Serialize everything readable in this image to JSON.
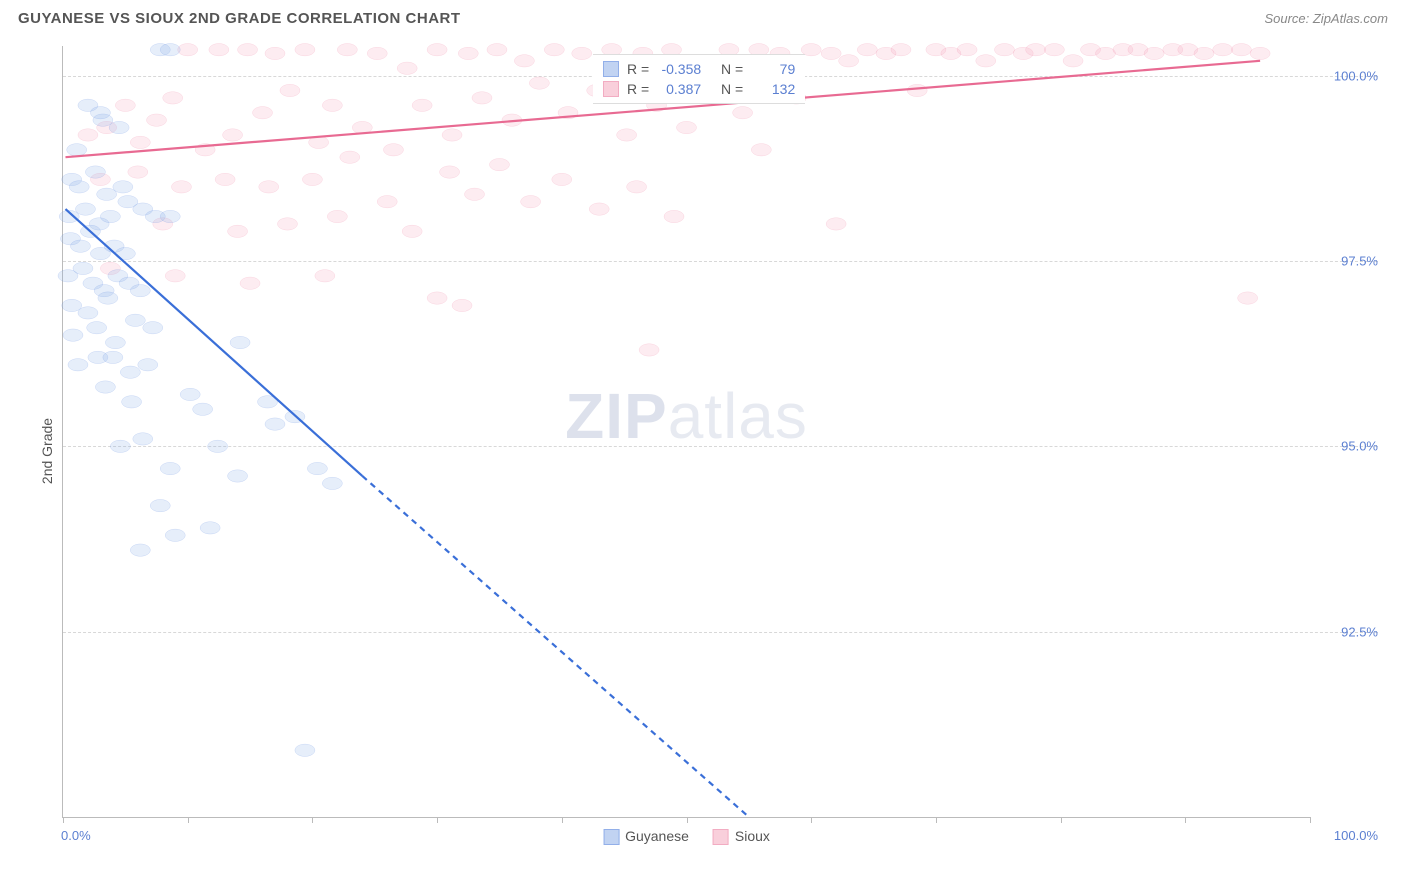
{
  "header": {
    "title": "GUYANESE VS SIOUX 2ND GRADE CORRELATION CHART",
    "source_prefix": "Source: ",
    "source_name": "ZipAtlas.com"
  },
  "watermark": {
    "bold": "ZIP",
    "rest": "atlas"
  },
  "chart": {
    "type": "scatter",
    "ylabel": "2nd Grade",
    "xlim": [
      0,
      100
    ],
    "ylim": [
      90.0,
      100.4
    ],
    "x_axis_label_left": "0.0%",
    "x_axis_label_right": "100.0%",
    "xtick_positions": [
      0,
      10,
      20,
      30,
      40,
      50,
      60,
      70,
      80,
      90,
      100
    ],
    "y_gridlines": [
      92.5,
      95.0,
      97.5,
      100.0
    ],
    "y_tick_labels": [
      "92.5%",
      "95.0%",
      "97.5%",
      "100.0%"
    ],
    "background_color": "#ffffff",
    "grid_color": "#d8d8d8",
    "axis_color": "#bbbbbb",
    "tick_label_color": "#5b7fd1",
    "marker_radius": 10,
    "marker_stroke_width": 1.5,
    "marker_fill_opacity": 0.22,
    "trend_line_width": 2.2,
    "trend_dash": "6,5",
    "series": {
      "guyanese": {
        "label": "Guyanese",
        "color_stroke": "#3a6fd8",
        "color_fill": "#8fb0e8",
        "R": "-0.358",
        "N": "79",
        "trend_solid": [
          [
            0.2,
            98.2
          ],
          [
            24.0,
            94.6
          ]
        ],
        "trend_dash": [
          [
            24.0,
            94.6
          ],
          [
            55.0,
            90.0
          ]
        ],
        "points": [
          [
            7.8,
            100.35
          ],
          [
            8.6,
            100.35
          ],
          [
            2.0,
            99.6
          ],
          [
            3.2,
            99.4
          ],
          [
            1.1,
            99.0
          ],
          [
            3.0,
            99.5
          ],
          [
            4.5,
            99.3
          ],
          [
            0.7,
            98.6
          ],
          [
            1.3,
            98.5
          ],
          [
            2.6,
            98.7
          ],
          [
            3.5,
            98.4
          ],
          [
            4.8,
            98.5
          ],
          [
            0.5,
            98.1
          ],
          [
            1.8,
            98.2
          ],
          [
            2.9,
            98.0
          ],
          [
            3.8,
            98.1
          ],
          [
            5.2,
            98.3
          ],
          [
            6.4,
            98.2
          ],
          [
            7.4,
            98.1
          ],
          [
            8.6,
            98.1
          ],
          [
            0.6,
            97.8
          ],
          [
            1.4,
            97.7
          ],
          [
            2.2,
            97.9
          ],
          [
            3.0,
            97.6
          ],
          [
            4.1,
            97.7
          ],
          [
            5.0,
            97.6
          ],
          [
            0.4,
            97.3
          ],
          [
            1.6,
            97.4
          ],
          [
            2.4,
            97.2
          ],
          [
            3.3,
            97.1
          ],
          [
            4.4,
            97.3
          ],
          [
            5.3,
            97.2
          ],
          [
            6.2,
            97.1
          ],
          [
            0.7,
            96.9
          ],
          [
            2.0,
            96.8
          ],
          [
            3.6,
            97.0
          ],
          [
            0.8,
            96.5
          ],
          [
            2.7,
            96.6
          ],
          [
            4.2,
            96.4
          ],
          [
            5.8,
            96.7
          ],
          [
            7.2,
            96.6
          ],
          [
            1.2,
            96.1
          ],
          [
            2.8,
            96.2
          ],
          [
            4.0,
            96.2
          ],
          [
            5.4,
            96.0
          ],
          [
            6.8,
            96.1
          ],
          [
            14.2,
            96.4
          ],
          [
            3.4,
            95.8
          ],
          [
            5.5,
            95.6
          ],
          [
            10.2,
            95.7
          ],
          [
            11.2,
            95.5
          ],
          [
            16.4,
            95.6
          ],
          [
            17.0,
            95.3
          ],
          [
            18.6,
            95.4
          ],
          [
            4.6,
            95.0
          ],
          [
            6.4,
            95.1
          ],
          [
            12.4,
            95.0
          ],
          [
            8.6,
            94.7
          ],
          [
            14.0,
            94.6
          ],
          [
            20.4,
            94.7
          ],
          [
            21.6,
            94.5
          ],
          [
            7.8,
            94.2
          ],
          [
            9.0,
            93.8
          ],
          [
            11.8,
            93.9
          ],
          [
            6.2,
            93.6
          ],
          [
            19.4,
            90.9
          ]
        ]
      },
      "sioux": {
        "label": "Sioux",
        "color_stroke": "#e86a92",
        "color_fill": "#f5a8be",
        "R": "0.387",
        "N": "132",
        "trend_solid": [
          [
            0.2,
            98.9
          ],
          [
            96.0,
            100.2
          ]
        ],
        "trend_dash": [],
        "points": [
          [
            2.0,
            99.2
          ],
          [
            3.5,
            99.3
          ],
          [
            5.0,
            99.6
          ],
          [
            6.2,
            99.1
          ],
          [
            7.5,
            99.4
          ],
          [
            8.8,
            99.7
          ],
          [
            10.0,
            100.35
          ],
          [
            11.4,
            99.0
          ],
          [
            12.5,
            100.35
          ],
          [
            13.6,
            99.2
          ],
          [
            14.8,
            100.35
          ],
          [
            16.0,
            99.5
          ],
          [
            17.0,
            100.3
          ],
          [
            18.2,
            99.8
          ],
          [
            19.4,
            100.35
          ],
          [
            20.5,
            99.1
          ],
          [
            21.6,
            99.6
          ],
          [
            22.8,
            100.35
          ],
          [
            24.0,
            99.3
          ],
          [
            25.2,
            100.3
          ],
          [
            26.5,
            99.0
          ],
          [
            27.6,
            100.1
          ],
          [
            28.8,
            99.6
          ],
          [
            30.0,
            100.35
          ],
          [
            31.2,
            99.2
          ],
          [
            32.5,
            100.3
          ],
          [
            33.6,
            99.7
          ],
          [
            34.8,
            100.35
          ],
          [
            36.0,
            99.4
          ],
          [
            37.0,
            100.2
          ],
          [
            38.2,
            99.9
          ],
          [
            39.4,
            100.35
          ],
          [
            40.5,
            99.5
          ],
          [
            41.6,
            100.3
          ],
          [
            42.8,
            99.8
          ],
          [
            44.0,
            100.35
          ],
          [
            45.2,
            99.2
          ],
          [
            46.5,
            100.3
          ],
          [
            47.6,
            99.6
          ],
          [
            48.8,
            100.35
          ],
          [
            50.0,
            99.3
          ],
          [
            51.0,
            100.2
          ],
          [
            52.2,
            99.9
          ],
          [
            53.4,
            100.35
          ],
          [
            54.5,
            99.5
          ],
          [
            55.8,
            100.35
          ],
          [
            57.5,
            100.3
          ],
          [
            58.8,
            99.7
          ],
          [
            60.0,
            100.35
          ],
          [
            61.6,
            100.3
          ],
          [
            63.0,
            100.2
          ],
          [
            64.5,
            100.35
          ],
          [
            66.0,
            100.3
          ],
          [
            67.2,
            100.35
          ],
          [
            68.5,
            99.8
          ],
          [
            70.0,
            100.35
          ],
          [
            71.2,
            100.3
          ],
          [
            72.5,
            100.35
          ],
          [
            74.0,
            100.2
          ],
          [
            75.5,
            100.35
          ],
          [
            77.0,
            100.3
          ],
          [
            78.0,
            100.35
          ],
          [
            79.5,
            100.35
          ],
          [
            81.0,
            100.2
          ],
          [
            82.4,
            100.35
          ],
          [
            83.6,
            100.3
          ],
          [
            85.0,
            100.35
          ],
          [
            86.2,
            100.35
          ],
          [
            87.5,
            100.3
          ],
          [
            89.0,
            100.35
          ],
          [
            90.2,
            100.35
          ],
          [
            91.5,
            100.3
          ],
          [
            93.0,
            100.35
          ],
          [
            94.5,
            100.35
          ],
          [
            96.0,
            100.3
          ],
          [
            3.0,
            98.6
          ],
          [
            6.0,
            98.7
          ],
          [
            9.5,
            98.5
          ],
          [
            13.0,
            98.6
          ],
          [
            16.5,
            98.5
          ],
          [
            20.0,
            98.6
          ],
          [
            23.0,
            98.9
          ],
          [
            26.0,
            98.3
          ],
          [
            31.0,
            98.7
          ],
          [
            33.0,
            98.4
          ],
          [
            35.0,
            98.8
          ],
          [
            37.5,
            98.3
          ],
          [
            40.0,
            98.6
          ],
          [
            43.0,
            98.2
          ],
          [
            46.0,
            98.5
          ],
          [
            49.0,
            98.1
          ],
          [
            56.0,
            99.0
          ],
          [
            62.0,
            98.0
          ],
          [
            8.0,
            98.0
          ],
          [
            14.0,
            97.9
          ],
          [
            18.0,
            98.0
          ],
          [
            22.0,
            98.1
          ],
          [
            28.0,
            97.9
          ],
          [
            3.8,
            97.4
          ],
          [
            9.0,
            97.3
          ],
          [
            15.0,
            97.2
          ],
          [
            21.0,
            97.3
          ],
          [
            30.0,
            97.0
          ],
          [
            32.0,
            96.9
          ],
          [
            47.0,
            96.3
          ],
          [
            95.0,
            97.0
          ]
        ]
      }
    },
    "stats_box": {
      "left_pct": 42.5,
      "top_pct": 1.0,
      "R_label": "R =",
      "N_label": "N ="
    }
  }
}
